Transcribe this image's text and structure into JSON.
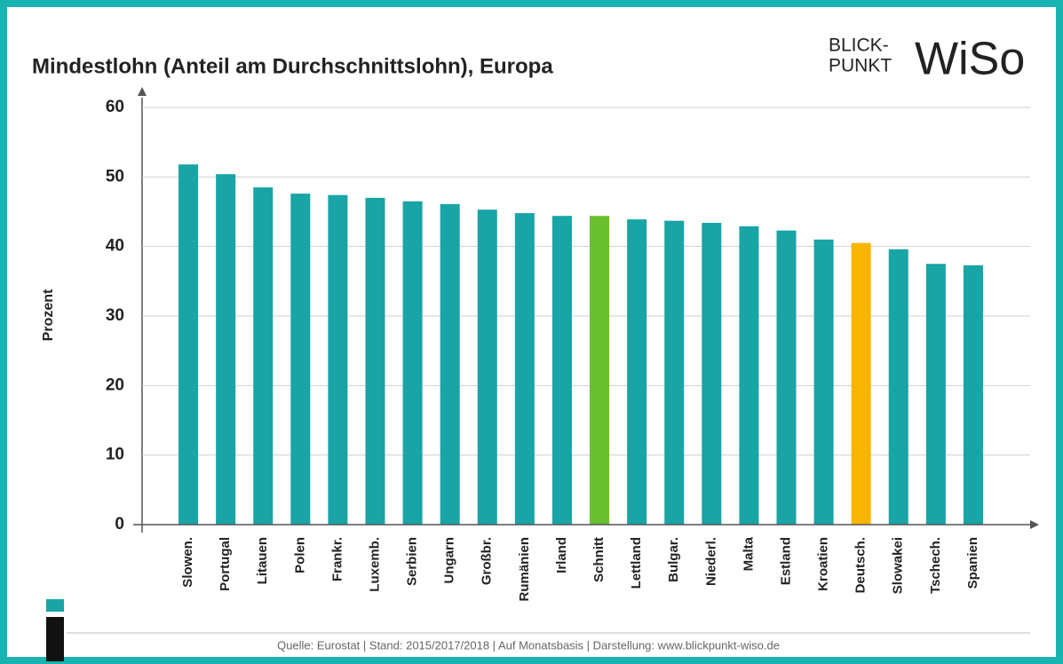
{
  "chart_data": {
    "type": "bar",
    "title": "Mindestlohn (Anteil am Durchschnittslohn), Europa",
    "y_label": "Prozent",
    "source": "Quelle: Eurostat  |  Stand: 2015/2017/2018  |  Auf Monatsbasis  |  Darstellung: www.blickpunkt-wiso.de",
    "logo": {
      "line1": "BLICK-",
      "line2": "PUNKT",
      "brand": "WiSo"
    },
    "categories": [
      "Slowen.",
      "Portugal",
      "Litauen",
      "Polen",
      "Frankr.",
      "Luxemb.",
      "Serbien",
      "Ungarn",
      "Großbr.",
      "Rumänien",
      "Irland",
      "Schnitt",
      "Lettland",
      "Bulgar.",
      "Niederl.",
      "Malta",
      "Estland",
      "Kroatien",
      "Deutsch.",
      "Slowakei",
      "Tschech.",
      "Spanien"
    ],
    "values": [
      51.8,
      50.4,
      48.5,
      47.6,
      47.4,
      47.0,
      46.5,
      46.1,
      45.3,
      44.8,
      44.4,
      44.4,
      43.9,
      43.7,
      43.4,
      42.9,
      42.3,
      41.0,
      40.5,
      39.6,
      37.5,
      37.3
    ],
    "colors": [
      "#19a4a5",
      "#19a4a5",
      "#19a4a5",
      "#19a4a5",
      "#19a4a5",
      "#19a4a5",
      "#19a4a5",
      "#19a4a5",
      "#19a4a5",
      "#19a4a5",
      "#19a4a5",
      "#6abf2e",
      "#19a4a5",
      "#19a4a5",
      "#19a4a5",
      "#19a4a5",
      "#19a4a5",
      "#19a4a5",
      "#f7b500",
      "#19a4a5",
      "#19a4a5",
      "#19a4a5"
    ],
    "ylim": [
      0,
      60
    ],
    "yticks": [
      0,
      10,
      20,
      30,
      40,
      50,
      60
    ],
    "grid": true
  }
}
